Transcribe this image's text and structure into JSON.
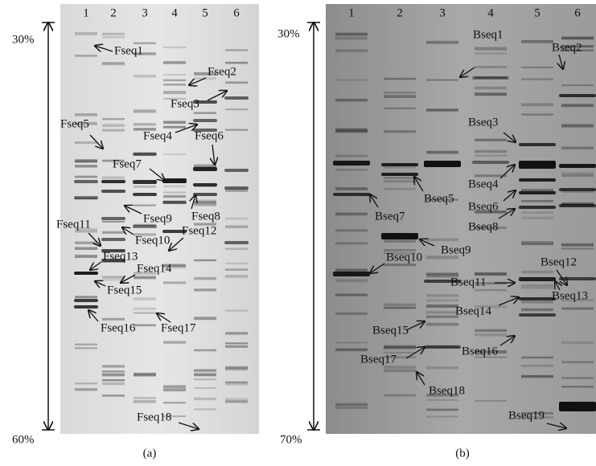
{
  "panel_a": {
    "lanes": [
      "1",
      "2",
      "3",
      "4",
      "5",
      "6"
    ],
    "top": "30%",
    "bottom": "60%",
    "labels": [
      "Fseq1",
      "Fseq2",
      "Fseq3",
      "Fseq4",
      "Fseq5",
      "Fseq6",
      "Fseq7",
      "Fseq8",
      "Fseq9",
      "Fseq10",
      "Fseq11",
      "Fseq12",
      "Fseq13",
      "Fseq14",
      "Fseq15",
      "Fseq16",
      "Fseq17",
      "Fseq18"
    ],
    "caption": "(a)"
  },
  "panel_b": {
    "lanes": [
      "1",
      "2",
      "3",
      "4",
      "5",
      "6"
    ],
    "top": "30%",
    "bottom": "70%",
    "labels": [
      "Bseq1",
      "Bseq2",
      "Bseq3",
      "Bseq4",
      "Bseq5",
      "Bseq6",
      "Bseq7",
      "Bseq8",
      "Bseq9",
      "Bseq10",
      "Bseq11",
      "Bseq12",
      "Bseq13",
      "Bseq14",
      "Bseq15",
      "Bseq16",
      "Bseq17",
      "Bseq18",
      "Bseq19"
    ],
    "caption": "(b)"
  }
}
